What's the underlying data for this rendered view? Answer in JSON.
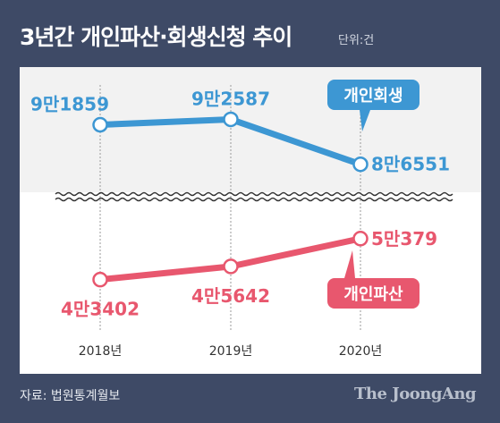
{
  "header": {
    "title": "3년간 개인파산·회생신청 추이",
    "unit": "단위:건"
  },
  "footer": {
    "source": "자료: 법원통계월보",
    "brand": "The JoongAng"
  },
  "colors": {
    "background": "#3e4a66",
    "rehab": "#3d97d3",
    "bankruptcy": "#e8576e"
  },
  "chart_data": {
    "type": "line",
    "x": [
      "2018년",
      "2019년",
      "2020년"
    ],
    "axis_break": true,
    "series": [
      {
        "name": "개인회생",
        "values": [
          91859,
          92587,
          86551
        ],
        "labels": [
          "9만1859",
          "9만2587",
          "8만6551"
        ],
        "color": "#3d97d3"
      },
      {
        "name": "개인파산",
        "values": [
          43402,
          45642,
          50379
        ],
        "labels": [
          "4만3402",
          "4만5642",
          "5만379"
        ],
        "color": "#e8576e"
      }
    ]
  }
}
